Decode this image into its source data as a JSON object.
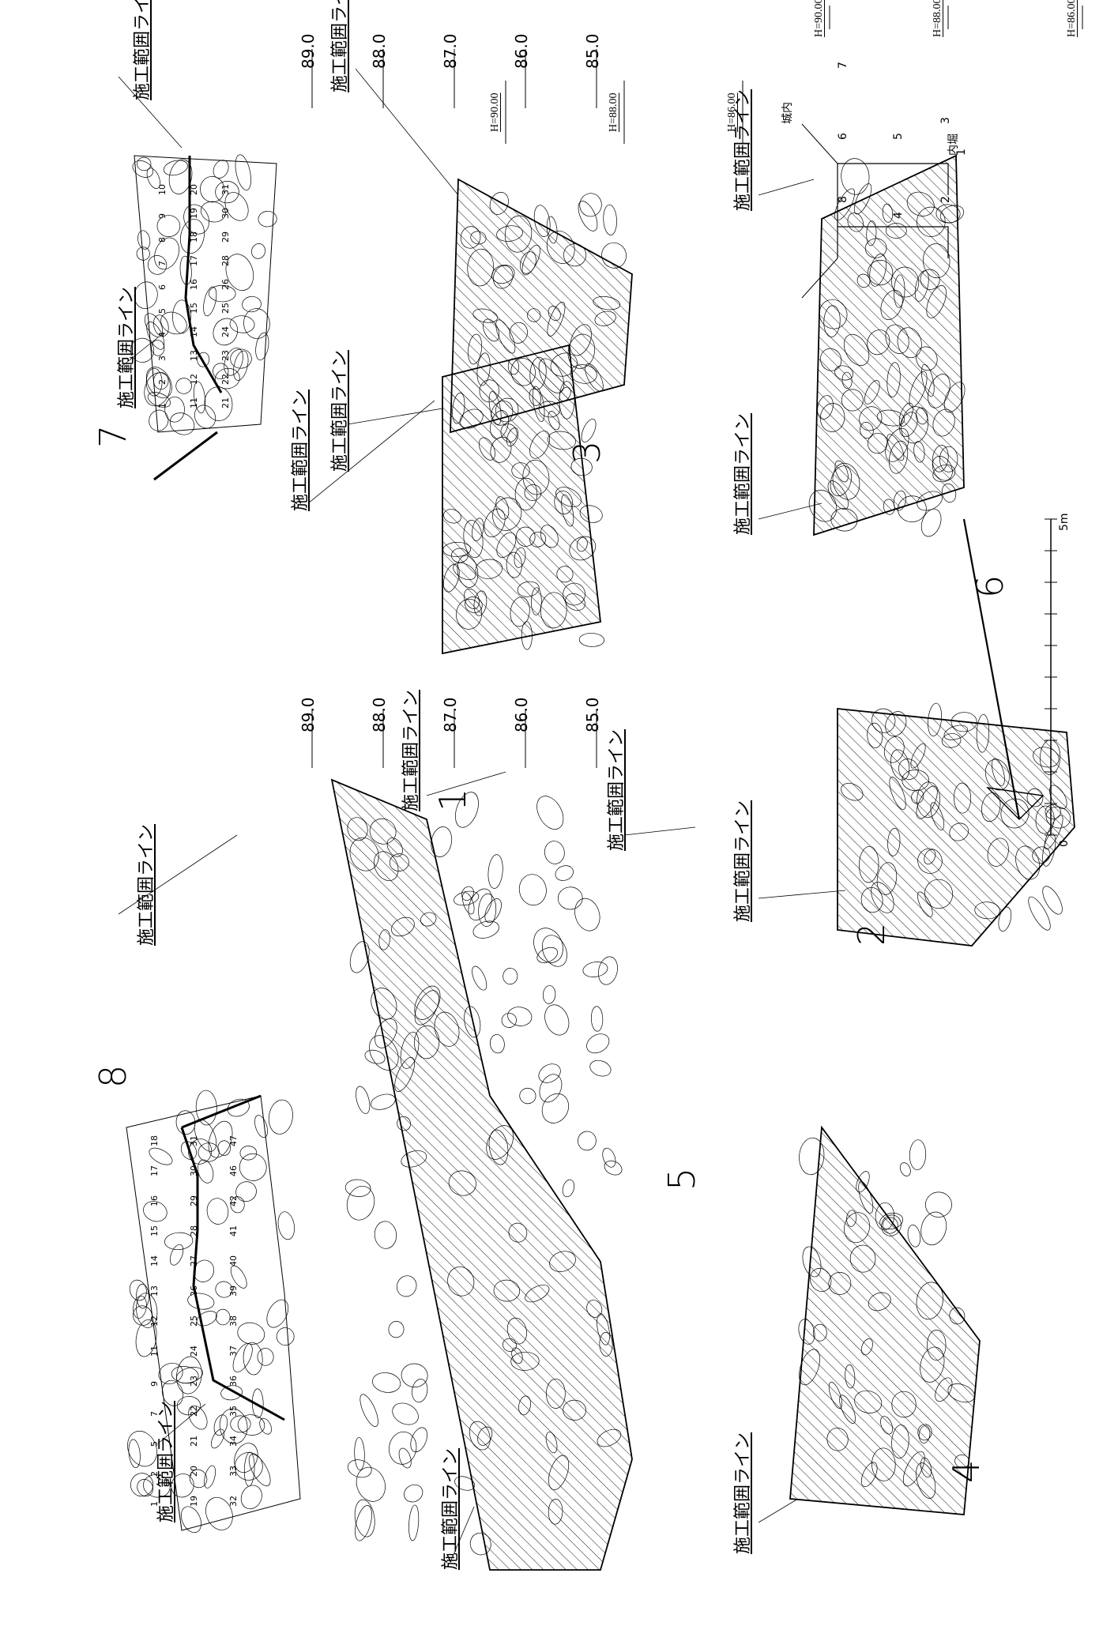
{
  "label_kouji": "施工範囲ライン",
  "key": {
    "inside": "城内",
    "moat": "内堀",
    "numbers": [
      "1",
      "2",
      "3",
      "4",
      "5",
      "6",
      "7",
      "8"
    ]
  },
  "walls": {
    "w1": "1",
    "w2": "2",
    "w3": "3",
    "w4": "4",
    "w5": "5",
    "w6": "6",
    "w7": "7",
    "w8": "8"
  },
  "elev_left": [
    "89.0",
    "88.0",
    "87.0",
    "86.0",
    "85.0"
  ],
  "elev_mid": [
    "89.0",
    "88.0",
    "87.0",
    "86.0",
    "85.0"
  ],
  "h_col1": [
    "H=90.00",
    "H=88.00",
    "H=86.00"
  ],
  "h_col2": [
    "H=90.00",
    "H=88.00",
    "H=86.00"
  ],
  "scale": {
    "zero": "0",
    "max": "5m"
  },
  "stones7": [
    "1",
    "2",
    "3",
    "4",
    "5",
    "6",
    "7",
    "8",
    "9",
    "10",
    "11",
    "12",
    "13",
    "14",
    "15",
    "16",
    "17",
    "18",
    "19",
    "20",
    "21",
    "22",
    "23",
    "24",
    "25",
    "26",
    "28",
    "29",
    "30",
    "31"
  ],
  "stones8": [
    "1",
    "2",
    "5",
    "7",
    "9",
    "11",
    "12",
    "13",
    "14",
    "15",
    "16",
    "17",
    "18",
    "19",
    "20",
    "21",
    "22",
    "23",
    "24",
    "25",
    "26",
    "27",
    "28",
    "29",
    "30",
    "31",
    "32",
    "33",
    "34",
    "35",
    "36",
    "37",
    "38",
    "39",
    "40",
    "41",
    "42",
    "46",
    "47"
  ]
}
